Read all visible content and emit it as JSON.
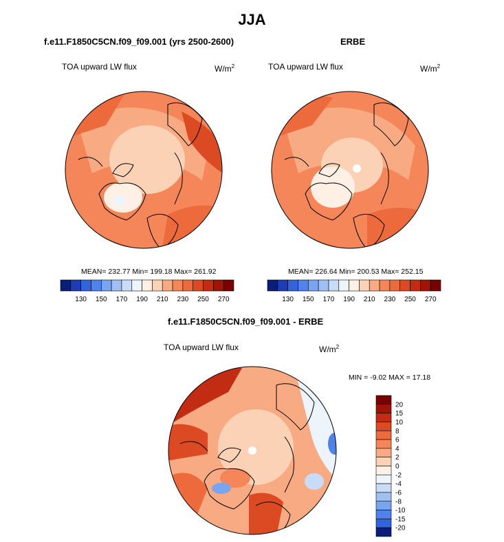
{
  "figure": {
    "title": "JJA"
  },
  "panels": {
    "model": {
      "title": "f.e11.F1850C5CN.f09_f09.001 (yrs 2500-2600)",
      "variable": "TOA upward LW flux",
      "units": "W/m",
      "units_exp": "2",
      "stats": "MEAN= 232.77  Min= 199.18  Max= 261.92"
    },
    "obs": {
      "title": "ERBE",
      "variable": "TOA upward LW flux",
      "units": "W/m",
      "units_exp": "2",
      "stats": "MEAN= 226.64  Min= 200.53  Max= 252.15"
    },
    "diff": {
      "title": "f.e11.F1850C5CN.f09_f09.001 - ERBE",
      "variable": "TOA upward LW flux",
      "units": "W/m",
      "units_exp": "2",
      "stats": "MIN =  -9.02 MAX =  17.18"
    }
  },
  "chart_data": [
    {
      "type": "heatmap",
      "projection": "north polar stereographic",
      "title": "f.e11.F1850C5CN.f09_f09.001 (yrs 2500-2600)",
      "variable": "TOA upward LW flux",
      "units": "W/m2",
      "mean": 232.77,
      "min": 199.18,
      "max": 261.92,
      "colorbar": {
        "orientation": "horizontal",
        "levels": [
          120,
          130,
          140,
          150,
          160,
          170,
          180,
          190,
          200,
          210,
          220,
          230,
          240,
          250,
          260,
          270
        ],
        "tick_labels": [
          "130",
          "150",
          "170",
          "190",
          "210",
          "230",
          "250",
          "270"
        ],
        "colors": [
          "#0a1e78",
          "#1e3cb4",
          "#3264dc",
          "#5082ec",
          "#78a4f0",
          "#a0c0f4",
          "#c8dcf8",
          "#eef4fc",
          "#fff0e6",
          "#fcd2b6",
          "#f8aa82",
          "#f4865a",
          "#ec6a3c",
          "#dc4a24",
          "#c22c12",
          "#a01408",
          "#780000"
        ]
      }
    },
    {
      "type": "heatmap",
      "projection": "north polar stereographic",
      "title": "ERBE",
      "variable": "TOA upward LW flux",
      "units": "W/m2",
      "mean": 226.64,
      "min": 200.53,
      "max": 252.15,
      "colorbar": {
        "orientation": "horizontal",
        "levels": [
          120,
          130,
          140,
          150,
          160,
          170,
          180,
          190,
          200,
          210,
          220,
          230,
          240,
          250,
          260,
          270
        ],
        "tick_labels": [
          "130",
          "150",
          "170",
          "190",
          "210",
          "230",
          "250",
          "270"
        ],
        "colors": [
          "#0a1e78",
          "#1e3cb4",
          "#3264dc",
          "#5082ec",
          "#78a4f0",
          "#a0c0f4",
          "#c8dcf8",
          "#eef4fc",
          "#fff0e6",
          "#fcd2b6",
          "#f8aa82",
          "#f4865a",
          "#ec6a3c",
          "#dc4a24",
          "#c22c12",
          "#a01408",
          "#780000"
        ]
      }
    },
    {
      "type": "heatmap",
      "projection": "north polar stereographic",
      "title": "f.e11.F1850C5CN.f09_f09.001 - ERBE",
      "variable": "TOA upward LW flux",
      "units": "W/m2",
      "min": -9.02,
      "max": 17.18,
      "colorbar": {
        "orientation": "vertical",
        "tick_labels": [
          "20",
          "15",
          "10",
          "8",
          "6",
          "4",
          "2",
          "0",
          "-2",
          "-4",
          "-6",
          "-8",
          "-10",
          "-15",
          "-20"
        ],
        "colors": [
          "#780000",
          "#a01408",
          "#c22c12",
          "#dc4a24",
          "#ec6a3c",
          "#f4865a",
          "#f8aa82",
          "#fcd2b6",
          "#fff0e6",
          "#eef4fc",
          "#c8dcf8",
          "#a0c0f4",
          "#78a4f0",
          "#5082ec",
          "#3264dc",
          "#0a1e78"
        ]
      }
    }
  ]
}
